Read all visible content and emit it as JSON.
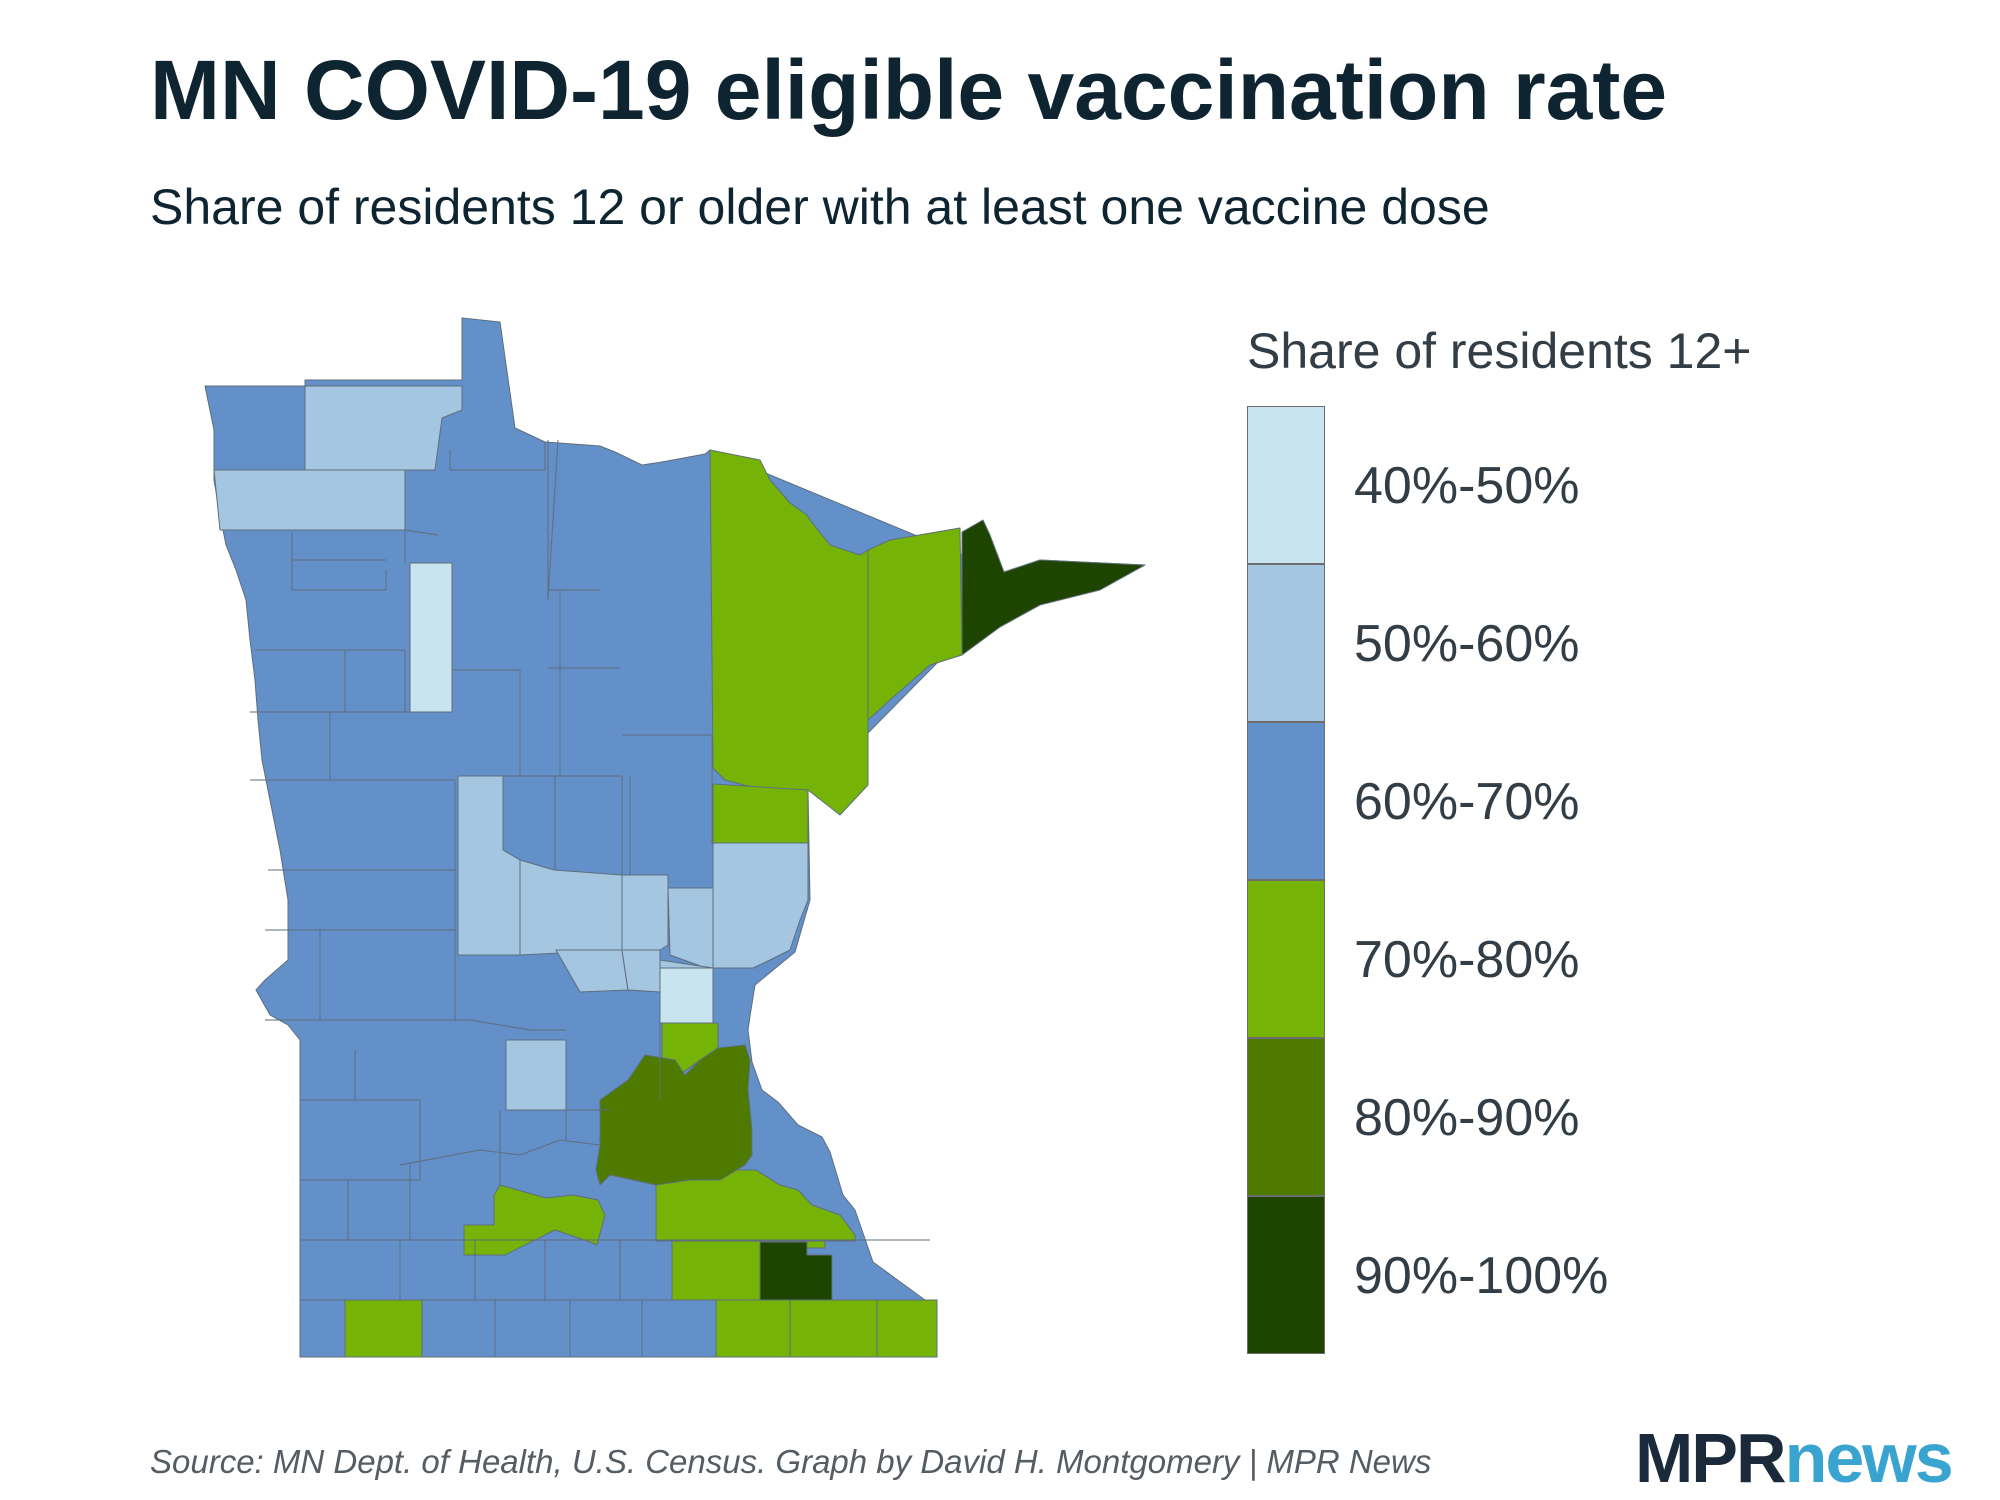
{
  "title": "MN COVID-19 eligible vaccination rate",
  "subtitle": "Share of residents 12 or older with at least one vaccine dose",
  "legend": {
    "title": "Share of residents 12+",
    "items": [
      {
        "label": "40%-50%",
        "color": "#c8e5ef"
      },
      {
        "label": "50%-60%",
        "color": "#a5c6e0"
      },
      {
        "label": "60%-70%",
        "color": "#6390c8"
      },
      {
        "label": "70%-80%",
        "color": "#75b406"
      },
      {
        "label": "80%-90%",
        "color": "#4f7a00"
      },
      {
        "label": "90%-100%",
        "color": "#1e4500"
      }
    ]
  },
  "source": "Source: MN Dept. of Health, U.S. Census. Graph by David H. Montgomery | MPR News",
  "logo": {
    "part1": "MPR",
    "part2": "news"
  }
}
